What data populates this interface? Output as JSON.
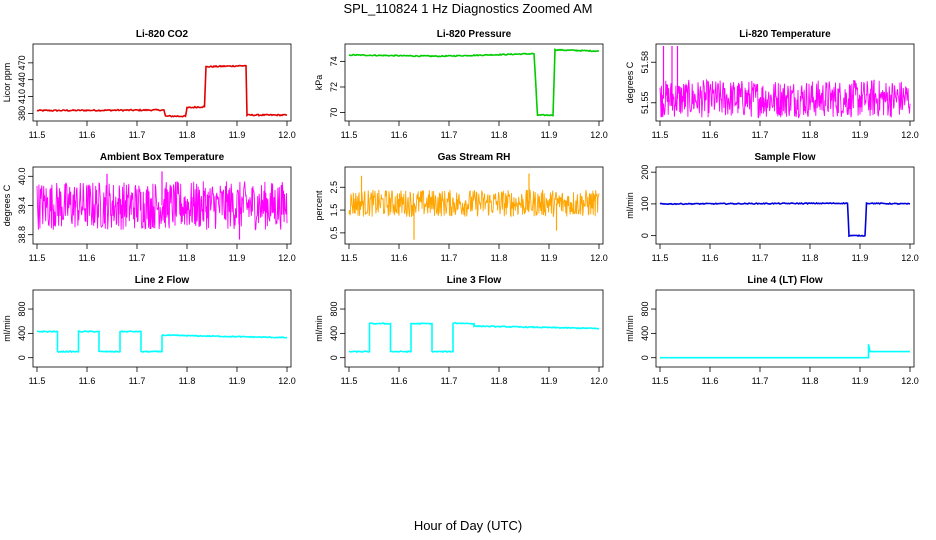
{
  "page": {
    "title": "SPL_110824 1 Hz Diagnostics Zoomed AM",
    "xlabel": "Hour of Day (UTC)"
  },
  "colors": {
    "red": "#e00000",
    "green": "#00cc00",
    "magenta": "#ff00ff",
    "orange": "#ffa500",
    "blue": "#0000dd",
    "cyan": "#00ffff"
  },
  "chart_data": [
    {
      "type": "line",
      "title": "Li-820 CO2",
      "ylabel": "Licor ppm",
      "color": "red",
      "xlim": [
        11.5,
        12.0
      ],
      "ylim": [
        370,
        500
      ],
      "xticks": [
        "11.5",
        "11.6",
        "11.7",
        "11.8",
        "11.9",
        "12.0"
      ],
      "yticks": [
        {
          "v": 380,
          "t": "380"
        },
        {
          "v": 410,
          "t": "410"
        },
        {
          "v": 440,
          "t": "440"
        },
        {
          "v": 470,
          "t": "470"
        }
      ],
      "series": [
        {
          "points": [
            [
              11.5,
              385
            ],
            [
              11.754,
              386
            ],
            [
              11.757,
              375
            ],
            [
              11.797,
              375
            ],
            [
              11.8,
              390
            ],
            [
              11.835,
              392
            ],
            [
              11.838,
              463
            ],
            [
              11.918,
              465
            ],
            [
              11.92,
              377
            ],
            [
              12.0,
              377
            ]
          ],
          "noise": 1.2
        }
      ]
    },
    {
      "type": "line",
      "title": "Li-820 Pressure",
      "ylabel": "kPa",
      "color": "green",
      "xlim": [
        11.5,
        12.0
      ],
      "ylim": [
        69.5,
        75.2
      ],
      "xticks": [
        "11.5",
        "11.6",
        "11.7",
        "11.8",
        "11.9",
        "12.0"
      ],
      "yticks": [
        {
          "v": 70,
          "t": "70"
        },
        {
          "v": 72,
          "t": "72"
        },
        {
          "v": 74,
          "t": "74"
        }
      ],
      "series": [
        {
          "points": [
            [
              11.5,
              74.5
            ],
            [
              11.68,
              74.4
            ],
            [
              11.87,
              74.6
            ],
            [
              11.877,
              69.8
            ],
            [
              11.908,
              69.8
            ],
            [
              11.912,
              74.9
            ],
            [
              12.0,
              74.8
            ]
          ],
          "noise": 0.04
        }
      ]
    },
    {
      "type": "line",
      "title": "Li-820 Temperature",
      "ylabel": "degrees C",
      "color": "magenta",
      "xlim": [
        11.5,
        12.0
      ],
      "ylim": [
        51.538,
        51.592
      ],
      "xticks": [
        "11.5",
        "11.6",
        "11.7",
        "11.8",
        "11.9",
        "12.0"
      ],
      "yticks": [
        {
          "v": 51.55,
          "t": "51.55"
        },
        {
          "v": 51.58,
          "t": "51.58"
        }
      ],
      "series": [
        {
          "band": [
            51.539,
            51.567
          ],
          "spikes": [
            [
              11.507,
              51.592
            ],
            [
              11.524,
              51.592
            ],
            [
              11.535,
              51.592
            ],
            [
              11.928,
              51.567
            ]
          ]
        }
      ]
    },
    {
      "type": "line",
      "title": "Ambient Box Temperature",
      "ylabel": "degrees C",
      "color": "magenta",
      "xlim": [
        11.5,
        12.0
      ],
      "ylim": [
        38.65,
        40.15
      ],
      "xticks": [
        "11.5",
        "11.6",
        "11.7",
        "11.8",
        "11.9",
        "12.0"
      ],
      "yticks": [
        {
          "v": 38.8,
          "t": "38.8"
        },
        {
          "v": 39.4,
          "t": "39.4"
        },
        {
          "v": 40.0,
          "t": "40.0"
        }
      ],
      "series": [
        {
          "band": [
            38.9,
            39.9
          ],
          "spikes": [
            [
              11.64,
              40.05
            ],
            [
              11.75,
              40.1
            ],
            [
              11.905,
              38.7
            ]
          ]
        }
      ]
    },
    {
      "type": "line",
      "title": "Gas Stream RH",
      "ylabel": "percent",
      "color": "orange",
      "xlim": [
        11.5,
        12.0
      ],
      "ylim": [
        0.1,
        3.3
      ],
      "xticks": [
        "11.5",
        "11.6",
        "11.7",
        "11.8",
        "11.9",
        "12.0"
      ],
      "yticks": [
        {
          "v": 0.5,
          "t": "0.5"
        },
        {
          "v": 1.5,
          "t": "1.5"
        },
        {
          "v": 2.5,
          "t": "2.5"
        }
      ],
      "series": [
        {
          "band": [
            1.2,
            2.4
          ],
          "spikes": [
            [
              11.63,
              0.2
            ],
            [
              11.86,
              3.1
            ],
            [
              11.525,
              3.0
            ],
            [
              11.915,
              0.6
            ]
          ]
        }
      ]
    },
    {
      "type": "line",
      "title": "Sample Flow",
      "ylabel": "ml/min",
      "color": "blue",
      "xlim": [
        11.5,
        12.0
      ],
      "ylim": [
        -20,
        210
      ],
      "xticks": [
        "11.5",
        "11.6",
        "11.7",
        "11.8",
        "11.9",
        "12.0"
      ],
      "yticks": [
        {
          "v": 0,
          "t": "0"
        },
        {
          "v": 100,
          "t": "100"
        },
        {
          "v": 200,
          "t": "200"
        }
      ],
      "series": [
        {
          "points": [
            [
              11.5,
              100
            ],
            [
              11.875,
              102
            ],
            [
              11.878,
              0
            ],
            [
              11.91,
              0
            ],
            [
              11.913,
              102
            ],
            [
              12.0,
              100
            ]
          ],
          "noise": 1.5
        }
      ]
    },
    {
      "type": "line",
      "title": "Line 2 Flow",
      "ylabel": "ml/min",
      "color": "cyan",
      "xlim": [
        11.5,
        12.0
      ],
      "ylim": [
        -120,
        1080
      ],
      "xticks": [
        "11.5",
        "11.6",
        "11.7",
        "11.8",
        "11.9",
        "12.0"
      ],
      "yticks": [
        {
          "v": 0,
          "t": "0"
        },
        {
          "v": 400,
          "t": "400"
        },
        {
          "v": 800,
          "t": "800"
        }
      ],
      "series": [
        {
          "points": [
            [
              11.5,
              430
            ],
            [
              11.541,
              430
            ],
            [
              11.541,
              100
            ],
            [
              11.583,
              100
            ],
            [
              11.583,
              430
            ],
            [
              11.624,
              430
            ],
            [
              11.624,
              100
            ],
            [
              11.666,
              100
            ],
            [
              11.666,
              430
            ],
            [
              11.708,
              430
            ],
            [
              11.708,
              100
            ],
            [
              11.75,
              100
            ],
            [
              11.75,
              370
            ],
            [
              12.0,
              330
            ]
          ],
          "noise": 8
        }
      ]
    },
    {
      "type": "line",
      "title": "Line 3 Flow",
      "ylabel": "ml/min",
      "color": "cyan",
      "xlim": [
        11.5,
        12.0
      ],
      "ylim": [
        -120,
        1080
      ],
      "xticks": [
        "11.5",
        "11.6",
        "11.7",
        "11.8",
        "11.9",
        "12.0"
      ],
      "yticks": [
        {
          "v": 0,
          "t": "0"
        },
        {
          "v": 400,
          "t": "400"
        },
        {
          "v": 800,
          "t": "800"
        }
      ],
      "series": [
        {
          "points": [
            [
              11.5,
              100
            ],
            [
              11.541,
              100
            ],
            [
              11.541,
              560
            ],
            [
              11.583,
              560
            ],
            [
              11.583,
              100
            ],
            [
              11.624,
              100
            ],
            [
              11.624,
              560
            ],
            [
              11.666,
              560
            ],
            [
              11.666,
              100
            ],
            [
              11.708,
              100
            ],
            [
              11.708,
              570
            ],
            [
              11.75,
              560
            ],
            [
              11.75,
              520
            ],
            [
              12.0,
              480
            ]
          ],
          "noise": 8
        }
      ]
    },
    {
      "type": "line",
      "title": "Line 4 (LT) Flow",
      "ylabel": "ml/min",
      "color": "cyan",
      "xlim": [
        11.5,
        12.0
      ],
      "ylim": [
        -120,
        1080
      ],
      "xticks": [
        "11.5",
        "11.6",
        "11.7",
        "11.8",
        "11.9",
        "12.0"
      ],
      "yticks": [
        {
          "v": 0,
          "t": "0"
        },
        {
          "v": 400,
          "t": "400"
        },
        {
          "v": 800,
          "t": "800"
        }
      ],
      "series": [
        {
          "points": [
            [
              11.5,
              0
            ],
            [
              11.917,
              0
            ],
            [
              11.917,
              220
            ],
            [
              11.92,
              100
            ],
            [
              12.0,
              100
            ]
          ],
          "noise": 0
        }
      ]
    }
  ]
}
